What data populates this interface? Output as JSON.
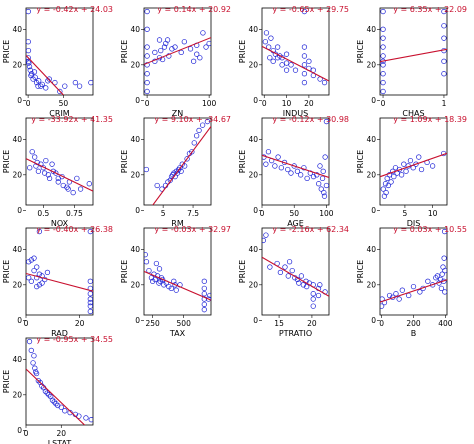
{
  "colors": {
    "points": "#1a1fd6",
    "fit_line": "#c8102e",
    "frame": "#000000"
  },
  "chart_data": [
    {
      "type": "scatter",
      "xlabel": "CRIM",
      "ylabel": "PRICE",
      "equation": "y = -0.42x + 24.03",
      "slope": -0.42,
      "intercept": 24.03,
      "xlim": [
        -3,
        92
      ],
      "ylim": [
        3,
        52
      ],
      "xticks": [
        0,
        50
      ],
      "yticks": [
        0,
        20,
        40
      ],
      "x": [
        0.1,
        0.2,
        0.3,
        0.5,
        0.8,
        1,
        2,
        3,
        4,
        5,
        7,
        9,
        10,
        12,
        14,
        15,
        18,
        20,
        25,
        28,
        30,
        38,
        45,
        52,
        67,
        73,
        89
      ],
      "y": [
        24,
        33,
        50,
        28,
        22,
        21,
        19,
        17,
        14,
        15,
        12,
        16,
        13,
        10,
        8,
        11,
        8,
        9,
        7,
        11,
        12,
        10,
        5,
        8,
        10,
        8,
        10
      ]
    },
    {
      "type": "scatter",
      "xlabel": "ZN",
      "ylabel": "PRICE",
      "equation": "y = 0.14x + 20.92",
      "slope": 0.14,
      "intercept": 20.92,
      "xlim": [
        -5,
        103
      ],
      "ylim": [
        3,
        52
      ],
      "xticks": [
        0,
        100
      ],
      "yticks": [
        0,
        20,
        40
      ],
      "x": [
        0,
        0,
        0,
        0,
        0,
        0,
        0,
        0,
        12.5,
        12.5,
        20,
        20,
        22,
        25,
        28,
        30,
        33,
        35,
        40,
        45,
        55,
        60,
        70,
        75,
        80,
        80,
        85,
        90,
        95,
        100
      ],
      "y": [
        5,
        10,
        15,
        20,
        25,
        30,
        40,
        50,
        22,
        27,
        24,
        34,
        28,
        23,
        30,
        32,
        34,
        25,
        29,
        30,
        27,
        33,
        29,
        22,
        31,
        26,
        24,
        38,
        30,
        32
      ]
    },
    {
      "type": "scatter",
      "xlabel": "INDUS",
      "ylabel": "PRICE",
      "equation": "y = -0.65x + 29.75",
      "slope": -0.65,
      "intercept": 29.75,
      "xlim": [
        -1,
        29
      ],
      "ylim": [
        3,
        52
      ],
      "xticks": [
        0,
        10,
        20
      ],
      "yticks": [
        0,
        20,
        40
      ],
      "x": [
        0.5,
        1,
        2,
        2.5,
        3,
        4,
        4,
        5,
        6,
        6,
        7,
        8,
        8,
        10,
        10,
        10,
        12,
        14,
        18,
        18,
        18,
        18,
        18,
        18,
        20,
        20,
        22,
        22,
        25,
        27
      ],
      "y": [
        33,
        38,
        30,
        24,
        35,
        28,
        22,
        26,
        24,
        30,
        25,
        20,
        24,
        21,
        26,
        17,
        20,
        17,
        10,
        15,
        20,
        25,
        30,
        50,
        18,
        22,
        17,
        14,
        12,
        10
      ]
    },
    {
      "type": "scatter",
      "xlabel": "CHAS",
      "ylabel": "PRICE",
      "equation": "y = 6.35x + 22.09",
      "slope": 6.35,
      "intercept": 22.09,
      "xlim": [
        -0.05,
        1.05
      ],
      "ylim": [
        3,
        52
      ],
      "xticks": [
        0,
        1
      ],
      "yticks": [
        0,
        20,
        40
      ],
      "x": [
        0,
        0,
        0,
        0,
        0,
        0,
        0,
        0,
        0,
        0,
        1,
        1,
        1,
        1,
        1,
        1
      ],
      "y": [
        5,
        10,
        15,
        20,
        22,
        25,
        30,
        35,
        40,
        50,
        15,
        22,
        28,
        35,
        42,
        50
      ]
    },
    {
      "type": "scatter",
      "xlabel": "NOX",
      "ylabel": "PRICE",
      "equation": "y = -33.92x + 41.35",
      "slope": -33.92,
      "intercept": 41.35,
      "xlim": [
        0.36,
        0.9
      ],
      "ylim": [
        3,
        52
      ],
      "xticks": [
        0.5,
        0.75
      ],
      "yticks": [
        0,
        20,
        40
      ],
      "x": [
        0.39,
        0.41,
        0.43,
        0.44,
        0.45,
        0.46,
        0.48,
        0.5,
        0.51,
        0.52,
        0.54,
        0.55,
        0.57,
        0.58,
        0.6,
        0.62,
        0.62,
        0.65,
        0.66,
        0.69,
        0.7,
        0.71,
        0.74,
        0.77,
        0.8,
        0.87
      ],
      "y": [
        24,
        33,
        30,
        25,
        27,
        22,
        26,
        24,
        21,
        28,
        20,
        18,
        26,
        22,
        21,
        16,
        18,
        19,
        14,
        13,
        12,
        16,
        10,
        18,
        12,
        15
      ]
    },
    {
      "type": "scatter",
      "xlabel": "RM",
      "ylabel": "PRICE",
      "equation": "y = 9.10x + -34.67",
      "slope": 9.1,
      "intercept": -34.67,
      "xlim": [
        3.4,
        9
      ],
      "ylim": [
        3,
        52
      ],
      "xticks": [
        5,
        7.5
      ],
      "yticks": [
        0,
        20,
        40
      ],
      "x": [
        3.6,
        4.5,
        4.9,
        5.2,
        5.4,
        5.6,
        5.7,
        5.8,
        5.9,
        6,
        6.1,
        6.2,
        6.3,
        6.4,
        6.5,
        6.6,
        6.8,
        7,
        7.2,
        7.4,
        7.6,
        7.8,
        8,
        8.3,
        8.7
      ],
      "y": [
        23,
        14,
        12,
        14,
        16,
        17,
        19,
        20,
        21,
        19,
        22,
        21,
        23,
        24,
        22,
        26,
        25,
        29,
        32,
        33,
        38,
        42,
        45,
        48,
        50
      ]
    },
    {
      "type": "scatter",
      "xlabel": "AGE",
      "ylabel": "PRICE",
      "equation": "y = -0.12x + 30.98",
      "slope": -0.12,
      "intercept": 30.98,
      "xlim": [
        0,
        104
      ],
      "ylim": [
        3,
        52
      ],
      "xticks": [
        0,
        50,
        100
      ],
      "yticks": [
        0,
        20,
        40
      ],
      "x": [
        3,
        6,
        10,
        15,
        20,
        25,
        30,
        35,
        40,
        45,
        50,
        55,
        60,
        65,
        70,
        75,
        80,
        85,
        88,
        90,
        92,
        94,
        95,
        96,
        97,
        98,
        100,
        100
      ],
      "y": [
        30,
        26,
        33,
        28,
        25,
        30,
        24,
        27,
        23,
        21,
        25,
        22,
        20,
        24,
        18,
        21,
        19,
        20,
        15,
        25,
        12,
        18,
        22,
        10,
        8,
        30,
        50,
        14
      ]
    },
    {
      "type": "scatter",
      "xlabel": "DIS",
      "ylabel": "PRICE",
      "equation": "y = 1.09x + 18.39",
      "slope": 1.09,
      "intercept": 18.39,
      "xlim": [
        0.5,
        12.6
      ],
      "ylim": [
        3,
        52
      ],
      "xticks": [
        5,
        10
      ],
      "yticks": [
        0,
        20,
        40
      ],
      "x": [
        1.1,
        1.3,
        1.5,
        1.6,
        1.8,
        2,
        2.2,
        2.5,
        2.8,
        3,
        3.3,
        3.6,
        4,
        4.4,
        4.8,
        5.2,
        5.6,
        6,
        6.5,
        7,
        7.5,
        8,
        9,
        10,
        12
      ],
      "y": [
        12,
        8,
        15,
        10,
        18,
        14,
        20,
        16,
        22,
        19,
        24,
        21,
        23,
        20,
        26,
        22,
        25,
        28,
        24,
        26,
        30,
        23,
        27,
        25,
        32
      ]
    },
    {
      "type": "scatter",
      "xlabel": "RAD",
      "ylabel": "PRICE",
      "equation": "y = -0.40x + 26.38",
      "slope": -0.4,
      "intercept": 26.38,
      "xlim": [
        0,
        25
      ],
      "ylim": [
        3,
        52
      ],
      "xticks": [
        0,
        20
      ],
      "yticks": [
        0,
        20,
        40
      ],
      "x": [
        1,
        1,
        2,
        2,
        3,
        3,
        4,
        4,
        4,
        5,
        5,
        5,
        6,
        6,
        7,
        8,
        24,
        24,
        24,
        24,
        24,
        24,
        24,
        24
      ],
      "y": [
        24,
        33,
        22,
        34,
        28,
        35,
        19,
        24,
        30,
        20,
        26,
        50,
        21,
        25,
        23,
        27,
        5,
        8,
        10,
        12,
        15,
        18,
        22,
        50
      ]
    },
    {
      "type": "scatter",
      "xlabel": "TAX",
      "ylabel": "PRICE",
      "equation": "y = -0.03x + 32.97",
      "slope": -0.03,
      "intercept": 32.97,
      "xlim": [
        180,
        720
      ],
      "ylim": [
        3,
        52
      ],
      "xticks": [
        250,
        500
      ],
      "yticks": [
        0,
        20,
        40
      ],
      "x": [
        190,
        200,
        220,
        240,
        250,
        260,
        270,
        280,
        290,
        300,
        305,
        310,
        320,
        330,
        340,
        360,
        380,
        400,
        420,
        430,
        440,
        470,
        666,
        666,
        666,
        666,
        666,
        666,
        700,
        711
      ],
      "y": [
        37,
        33,
        28,
        24,
        22,
        26,
        23,
        32,
        25,
        21,
        29,
        22,
        24,
        23,
        20,
        21,
        19,
        18,
        22,
        20,
        17,
        20,
        6,
        9,
        12,
        15,
        18,
        22,
        12,
        14
      ]
    },
    {
      "type": "scatter",
      "xlabel": "PTRATIO",
      "ylabel": "PRICE",
      "equation": "y = -2.16x + 62.34",
      "slope": -2.16,
      "intercept": 62.34,
      "xlim": [
        12.4,
        22.6
      ],
      "ylim": [
        3,
        52
      ],
      "xticks": [
        15,
        20
      ],
      "yticks": [
        0,
        20,
        40
      ],
      "x": [
        12.6,
        13,
        13.6,
        14.7,
        15.2,
        15.9,
        16.4,
        16.6,
        17,
        17.4,
        17.8,
        18,
        18.4,
        18.7,
        19.1,
        19.2,
        19.6,
        20.2,
        20.2,
        20.2,
        20.2,
        21,
        21,
        21.2,
        22
      ],
      "y": [
        45,
        48,
        30,
        32,
        27,
        30,
        25,
        33,
        28,
        24,
        23,
        21,
        25,
        20,
        22,
        19,
        21,
        8,
        12,
        15,
        20,
        18,
        14,
        20,
        16
      ]
    },
    {
      "type": "scatter",
      "xlabel": "B",
      "ylabel": "PRICE",
      "equation": "y = 0.03x + 10.55",
      "slope": 0.03,
      "intercept": 10.55,
      "xlim": [
        -10,
        410
      ],
      "ylim": [
        3,
        52
      ],
      "xticks": [
        0,
        200,
        400
      ],
      "yticks": [
        0,
        20,
        40
      ],
      "x": [
        0,
        3,
        18,
        50,
        70,
        90,
        110,
        130,
        170,
        200,
        240,
        260,
        290,
        320,
        340,
        350,
        360,
        370,
        375,
        380,
        385,
        390,
        392,
        395,
        396,
        397
      ],
      "y": [
        8,
        12,
        10,
        14,
        13,
        15,
        12,
        17,
        14,
        19,
        16,
        18,
        22,
        20,
        24,
        25,
        21,
        23,
        18,
        26,
        30,
        22,
        35,
        50,
        16,
        28
      ]
    },
    {
      "type": "scatter",
      "xlabel": "LSTAT",
      "ylabel": "PRICE",
      "equation": "y = -0.95x + 34.55",
      "slope": -0.95,
      "intercept": 34.55,
      "xlim": [
        0,
        38
      ],
      "ylim": [
        3,
        52
      ],
      "xticks": [
        0,
        20
      ],
      "yticks": [
        0,
        20,
        40
      ],
      "x": [
        2,
        3,
        4,
        4.5,
        5,
        5.5,
        6,
        7,
        8,
        9,
        10,
        11,
        12,
        13,
        14,
        15,
        16,
        17,
        18,
        20,
        22,
        25,
        28,
        30,
        34,
        37
      ],
      "y": [
        50,
        45,
        38,
        42,
        35,
        33,
        32,
        28,
        27,
        25,
        24,
        22,
        21,
        20,
        19,
        17,
        16,
        15,
        14,
        13,
        11,
        10,
        9,
        8,
        7,
        6
      ]
    }
  ]
}
